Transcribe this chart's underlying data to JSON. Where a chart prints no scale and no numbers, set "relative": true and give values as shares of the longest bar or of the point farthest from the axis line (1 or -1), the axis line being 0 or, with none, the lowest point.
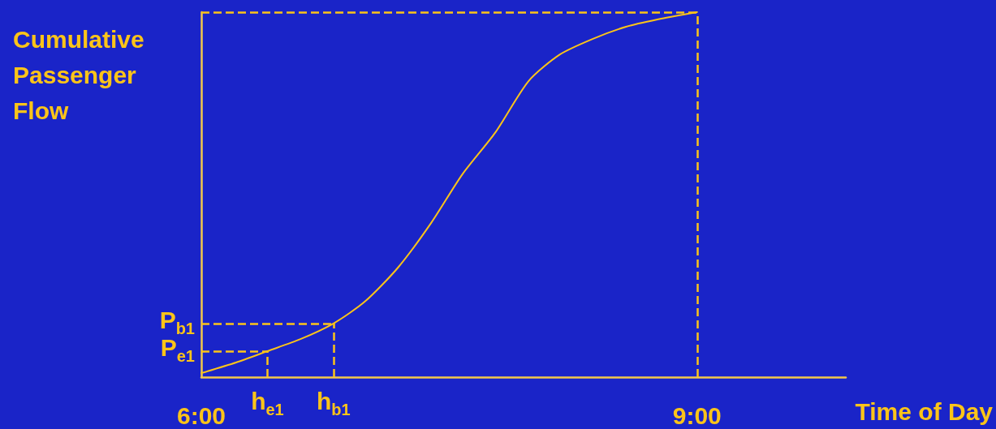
{
  "chart_data": {
    "type": "line",
    "relative": true,
    "xlabel": "Time of Day",
    "ylabel": "Cumulative Passenger Flow",
    "xlim": [
      6,
      9.9
    ],
    "xticks": [
      {
        "value": 6,
        "label": "6:00"
      },
      {
        "value": 9,
        "label": "9:00"
      }
    ],
    "marker": "none",
    "series": [
      {
        "color": "#fcc419",
        "x": [
          6.0,
          6.21,
          6.4,
          6.6,
          6.8,
          6.99,
          7.19,
          7.39,
          7.58,
          7.78,
          7.98,
          8.17,
          8.37,
          8.57,
          8.76,
          9.0
        ],
        "values": [
          0.011,
          0.04,
          0.071,
          0.104,
          0.147,
          0.207,
          0.3,
          0.422,
          0.556,
          0.671,
          0.811,
          0.884,
          0.927,
          0.96,
          0.98,
          1.0
        ]
      }
    ],
    "ref_lines": [
      {
        "axis": "x",
        "value": 6.4,
        "label": "h$_{e1}$",
        "color": "#fcc419",
        "line_style": "dashed"
      },
      {
        "axis": "x",
        "value": 6.8,
        "label": "h$_{b1}$",
        "color": "#fcc419",
        "line_style": "dashed"
      },
      {
        "axis": "y",
        "value": 0.071,
        "label": "P$_{e1}$",
        "color": "#fcc419",
        "line_style": "dashed"
      },
      {
        "axis": "y",
        "value": 0.147,
        "label": "P$_{b1}$",
        "color": "#fcc419",
        "line_style": "dashed"
      },
      {
        "axis": "x",
        "value": 9,
        "label": null,
        "color": "#fcc419",
        "line_style": "dashed"
      },
      {
        "axis": "y",
        "value": 1.0,
        "label": null,
        "color": "#fcc419",
        "line_style": "dashed"
      }
    ]
  }
}
